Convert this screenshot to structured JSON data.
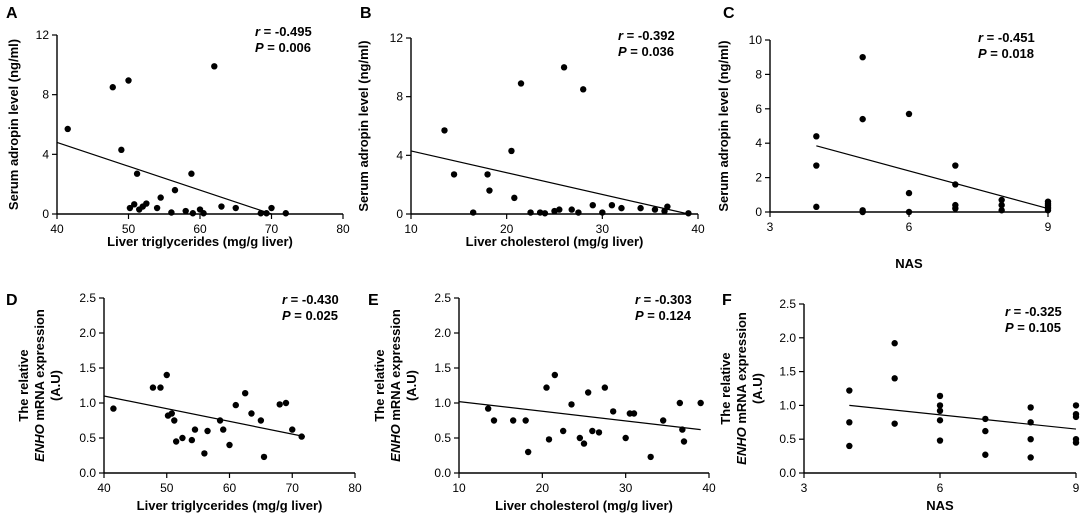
{
  "chart_data": [
    {
      "panel": "A",
      "type": "scatter",
      "xlabel": "Liver triglycerides (mg/g liver)",
      "ylabel_lines": [
        "Serum adropin level (ng/ml)"
      ],
      "xlim": [
        40,
        80
      ],
      "ylim": [
        0,
        12
      ],
      "xticks": [
        40,
        50,
        60,
        70,
        80
      ],
      "xtick_labels": [
        "40",
        "50",
        "60",
        "70",
        "80"
      ],
      "yticks": [
        0,
        4,
        8,
        12
      ],
      "ytick_labels": [
        "0",
        "4",
        "8",
        "12"
      ],
      "r_label": "r",
      "r_value": "= -0.495",
      "p_label": "P",
      "p_value": "= 0.006",
      "fit": [
        [
          40,
          4.8
        ],
        [
          70,
          0
        ]
      ],
      "points": [
        [
          41.5,
          5.7
        ],
        [
          47.8,
          8.5
        ],
        [
          49,
          4.3
        ],
        [
          50,
          8.95
        ],
        [
          50.2,
          0.4
        ],
        [
          50.8,
          0.65
        ],
        [
          51.2,
          2.7
        ],
        [
          51.5,
          0.3
        ],
        [
          52,
          0.5
        ],
        [
          52.5,
          0.7
        ],
        [
          54,
          0.4
        ],
        [
          54.5,
          1.1
        ],
        [
          56,
          0.1
        ],
        [
          56.5,
          1.6
        ],
        [
          58,
          0.2
        ],
        [
          58.8,
          2.7
        ],
        [
          59,
          0.05
        ],
        [
          60,
          0.3
        ],
        [
          60.5,
          0.05
        ],
        [
          62,
          9.9
        ],
        [
          63,
          0.5
        ],
        [
          65,
          0.4
        ],
        [
          68.5,
          0.05
        ],
        [
          69.3,
          0.05
        ],
        [
          70,
          0.4
        ],
        [
          72,
          0.05
        ]
      ]
    },
    {
      "panel": "B",
      "type": "scatter",
      "xlabel": "Liver cholesterol (mg/g liver)",
      "ylabel_lines": [
        "Serum adropin level (ng/ml)"
      ],
      "xlim": [
        10,
        40
      ],
      "ylim": [
        0,
        12
      ],
      "xticks": [
        10,
        20,
        30,
        40
      ],
      "xtick_labels": [
        "10",
        "20",
        "30",
        "40"
      ],
      "yticks": [
        0,
        4,
        8,
        12
      ],
      "ytick_labels": [
        "0",
        "4",
        "8",
        "12"
      ],
      "r_label": "r",
      "r_value": "= -0.392",
      "p_label": "P",
      "p_value": "= 0.036",
      "fit": [
        [
          10,
          4.3
        ],
        [
          39,
          0
        ]
      ],
      "points": [
        [
          13.5,
          5.7
        ],
        [
          14.5,
          2.7
        ],
        [
          16.5,
          0.1
        ],
        [
          18,
          2.7
        ],
        [
          18.2,
          1.6
        ],
        [
          20.5,
          4.3
        ],
        [
          20.8,
          1.1
        ],
        [
          21.5,
          8.9
        ],
        [
          22.5,
          0.1
        ],
        [
          23.5,
          0.1
        ],
        [
          24,
          0.05
        ],
        [
          25,
          0.2
        ],
        [
          25.5,
          0.3
        ],
        [
          26,
          10.0
        ],
        [
          26.8,
          0.3
        ],
        [
          27.5,
          0.1
        ],
        [
          28,
          8.5
        ],
        [
          29,
          0.6
        ],
        [
          30,
          0.1
        ],
        [
          31,
          0.6
        ],
        [
          32,
          0.4
        ],
        [
          34,
          0.4
        ],
        [
          35.5,
          0.3
        ],
        [
          36.5,
          0.2
        ],
        [
          36.8,
          0.5
        ],
        [
          39,
          0.05
        ]
      ]
    },
    {
      "panel": "C",
      "type": "scatter",
      "xlabel": "NAS",
      "ylabel_lines": [
        "Serum adropin level (ng/ml)"
      ],
      "xlim": [
        3,
        9
      ],
      "ylim": [
        0,
        10
      ],
      "xticks": [
        3,
        6,
        9
      ],
      "xtick_labels": [
        "3",
        "6",
        "9"
      ],
      "yticks": [
        0,
        2,
        4,
        6,
        8,
        10
      ],
      "ytick_labels": [
        "0",
        "2",
        "4",
        "6",
        "8",
        "10"
      ],
      "r_label": "r",
      "r_value": "= -0.451",
      "p_label": "P",
      "p_value": "= 0.018",
      "fit": [
        [
          4,
          3.85
        ],
        [
          9,
          0.2
        ]
      ],
      "points": [
        [
          4,
          4.4
        ],
        [
          4,
          2.7
        ],
        [
          4,
          0.3
        ],
        [
          5,
          9.0
        ],
        [
          5,
          5.4
        ],
        [
          5,
          0.1
        ],
        [
          5,
          0.0
        ],
        [
          6,
          5.7
        ],
        [
          6,
          1.1
        ],
        [
          6,
          0.0
        ],
        [
          7,
          2.7
        ],
        [
          7,
          1.6
        ],
        [
          7,
          0.4
        ],
        [
          7,
          0.2
        ],
        [
          8,
          0.7
        ],
        [
          8,
          0.4
        ],
        [
          8,
          0.1
        ],
        [
          9,
          0.6
        ],
        [
          9,
          0.5
        ],
        [
          9,
          0.4
        ],
        [
          9,
          0.3
        ],
        [
          9,
          0.2
        ],
        [
          9,
          0.1
        ]
      ]
    },
    {
      "panel": "D",
      "type": "scatter",
      "xlabel": "Liver triglycerides (mg/g liver)",
      "ylabel_lines": [
        "The relative",
        "ENHO mRNA expression",
        "(A.U)"
      ],
      "ylabel_italic": "ENHO",
      "xlim": [
        40,
        80
      ],
      "ylim": [
        0,
        2.5
      ],
      "xticks": [
        40,
        50,
        60,
        70,
        80
      ],
      "xtick_labels": [
        "40",
        "50",
        "60",
        "70",
        "80"
      ],
      "yticks": [
        0,
        0.5,
        1.0,
        1.5,
        2.0,
        2.5
      ],
      "ytick_labels": [
        "0.0",
        "0.5",
        "1.0",
        "1.5",
        "2.0",
        "2.5"
      ],
      "r_label": "r",
      "r_value": "= -0.430",
      "p_label": "P",
      "p_value": "= 0.025",
      "fit": [
        [
          40,
          1.1
        ],
        [
          72,
          0.52
        ]
      ],
      "points": [
        [
          41.5,
          0.92
        ],
        [
          47.8,
          1.22
        ],
        [
          49,
          1.22
        ],
        [
          50,
          1.4
        ],
        [
          50.2,
          0.82
        ],
        [
          50.8,
          0.85
        ],
        [
          51.2,
          0.75
        ],
        [
          51.5,
          0.45
        ],
        [
          52.5,
          0.5
        ],
        [
          54,
          0.47
        ],
        [
          54.5,
          0.62
        ],
        [
          56,
          0.28
        ],
        [
          56.5,
          0.6
        ],
        [
          58.5,
          0.75
        ],
        [
          59,
          0.62
        ],
        [
          60,
          0.4
        ],
        [
          61,
          0.97
        ],
        [
          62.5,
          1.14
        ],
        [
          63.5,
          0.85
        ],
        [
          65,
          0.75
        ],
        [
          65.5,
          0.23
        ],
        [
          68,
          0.98
        ],
        [
          69,
          1.0
        ],
        [
          70,
          0.62
        ],
        [
          71.5,
          0.52
        ]
      ]
    },
    {
      "panel": "E",
      "type": "scatter",
      "xlabel": "Liver cholesterol (mg/g liver)",
      "ylabel_lines": [
        "The relative",
        "ENHO mRNA expression",
        "(A.U)"
      ],
      "ylabel_italic": "ENHO",
      "xlim": [
        10,
        40
      ],
      "ylim": [
        0,
        2.5
      ],
      "xticks": [
        10,
        20,
        30,
        40
      ],
      "xtick_labels": [
        "10",
        "20",
        "30",
        "40"
      ],
      "yticks": [
        0,
        0.5,
        1.0,
        1.5,
        2.0,
        2.5
      ],
      "ytick_labels": [
        "0.0",
        "0.5",
        "1.0",
        "1.5",
        "2.0",
        "2.5"
      ],
      "r_label": "r",
      "r_value": "= -0.303",
      "p_label": "P",
      "p_value": "= 0.124",
      "fit": [
        [
          10,
          1.02
        ],
        [
          39,
          0.62
        ]
      ],
      "points": [
        [
          13.5,
          0.92
        ],
        [
          14.2,
          0.75
        ],
        [
          16.5,
          0.75
        ],
        [
          18,
          0.75
        ],
        [
          18.3,
          0.3
        ],
        [
          20.5,
          1.22
        ],
        [
          20.8,
          0.48
        ],
        [
          21.5,
          1.4
        ],
        [
          22.5,
          0.6
        ],
        [
          23.5,
          0.98
        ],
        [
          24.5,
          0.5
        ],
        [
          25,
          0.42
        ],
        [
          25.5,
          1.15
        ],
        [
          26,
          0.6
        ],
        [
          26.8,
          0.58
        ],
        [
          27.5,
          1.22
        ],
        [
          28.5,
          0.88
        ],
        [
          30,
          0.5
        ],
        [
          30.5,
          0.85
        ],
        [
          31,
          0.85
        ],
        [
          33,
          0.23
        ],
        [
          34.5,
          0.75
        ],
        [
          36.5,
          1.0
        ],
        [
          36.8,
          0.62
        ],
        [
          37,
          0.45
        ],
        [
          39,
          1.0
        ]
      ]
    },
    {
      "panel": "F",
      "type": "scatter",
      "xlabel": "NAS",
      "ylabel_lines": [
        "The relative",
        "ENHO mRNA expression",
        "(A.U)"
      ],
      "ylabel_italic": "ENHO",
      "xlim": [
        3,
        9
      ],
      "ylim": [
        0,
        2.5
      ],
      "xticks": [
        3,
        6,
        9
      ],
      "xtick_labels": [
        "3",
        "6",
        "9"
      ],
      "yticks": [
        0,
        0.5,
        1.0,
        1.5,
        2.0,
        2.5
      ],
      "ytick_labels": [
        "0.0",
        "0.5",
        "1.0",
        "1.5",
        "2.0",
        "2.5"
      ],
      "r_label": "r",
      "r_value": "= -0.325",
      "p_label": "P",
      "p_value": "= 0.105",
      "fit": [
        [
          4,
          1.0
        ],
        [
          9,
          0.65
        ]
      ],
      "points": [
        [
          4,
          1.22
        ],
        [
          4,
          0.75
        ],
        [
          4,
          0.4
        ],
        [
          5,
          1.92
        ],
        [
          5,
          1.4
        ],
        [
          5,
          0.73
        ],
        [
          6,
          1.14
        ],
        [
          6,
          1.0
        ],
        [
          6,
          0.92
        ],
        [
          6,
          0.78
        ],
        [
          6,
          0.48
        ],
        [
          7,
          0.8
        ],
        [
          7,
          0.62
        ],
        [
          7,
          0.27
        ],
        [
          8,
          0.97
        ],
        [
          8,
          0.75
        ],
        [
          8,
          0.5
        ],
        [
          8,
          0.23
        ],
        [
          9,
          1.0
        ],
        [
          9,
          0.87
        ],
        [
          9,
          0.83
        ],
        [
          9,
          0.5
        ],
        [
          9,
          0.45
        ]
      ]
    }
  ]
}
